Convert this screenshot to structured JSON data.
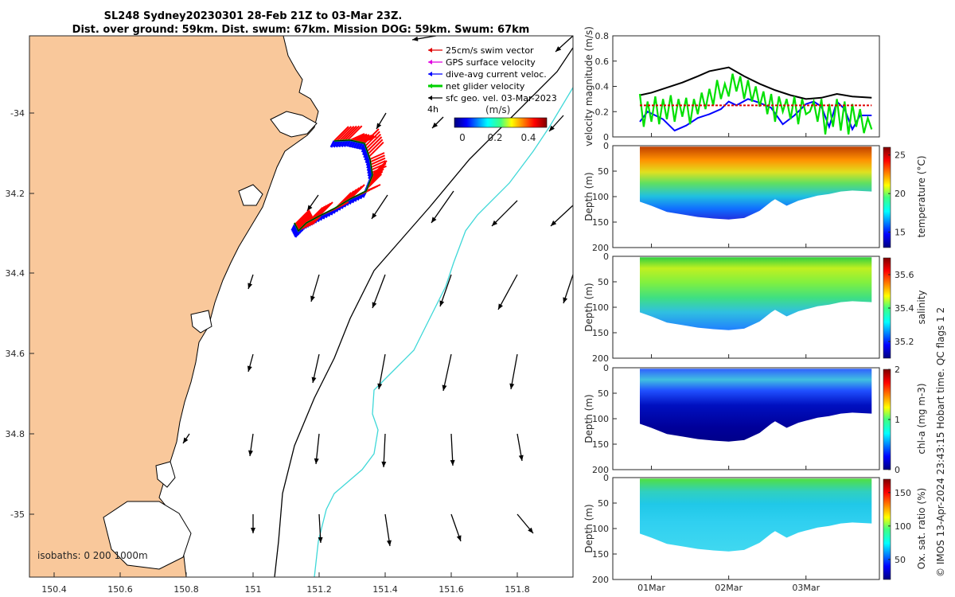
{
  "title": {
    "line1": "SL248 Sydney20230301 28-Feb 21Z to 03-Mar 23Z.",
    "line2": "Dist. over ground: 59km. Dist. swum: 67km. Mission DOG: 59km. Swum: 67km"
  },
  "map": {
    "lon_ticks": [
      "150.4",
      "150.6",
      "150.8",
      "151",
      "151.2",
      "151.4",
      "151.6",
      "151.8"
    ],
    "lat_ticks": [
      "-34",
      "34.2",
      "34.4",
      "34.6",
      "34.8",
      "-35"
    ],
    "legend": [
      {
        "label": "25cm/s swim vector",
        "color": "#e00000"
      },
      {
        "label": "GPS surface velocity",
        "color": "#e000e0"
      },
      {
        "label": "dive-avg current veloc.",
        "color": "#0000ff"
      },
      {
        "label": "net glider velocity",
        "color": "#00d000"
      },
      {
        "label": "sfc geo. vel. 03-Mar-2023",
        "color": "#000000"
      }
    ],
    "time_step": "4h",
    "cbar_unit": "(m/s)",
    "cbar_ticks": [
      "0",
      "0.2",
      "0.4"
    ],
    "isobaths_label": "isobaths: 0   200  1000m",
    "colors": {
      "land": "#f9c89b",
      "isobath_200": "#000000",
      "isobath_1000": "#3fd8d8"
    }
  },
  "chart_data": [
    {
      "type": "line",
      "ylabel": "velocity magnitude (m/s)",
      "ylim": [
        0,
        0.8
      ],
      "yticks": [
        "0",
        "0.2",
        "0.4",
        "0.6",
        "0.8"
      ],
      "series": [
        {
          "color": "#000000",
          "t": [
            0.85,
            1.0,
            1.2,
            1.4,
            1.6,
            1.75,
            2.0,
            2.2,
            2.4,
            2.6,
            2.8,
            3.0,
            3.2,
            3.4,
            3.6,
            3.85
          ],
          "v": [
            0.33,
            0.35,
            0.39,
            0.43,
            0.48,
            0.52,
            0.55,
            0.48,
            0.42,
            0.37,
            0.33,
            0.3,
            0.31,
            0.34,
            0.32,
            0.31
          ]
        },
        {
          "color": "#0000ff",
          "t": [
            0.85,
            0.95,
            1.05,
            1.15,
            1.3,
            1.45,
            1.6,
            1.75,
            1.9,
            2.0,
            2.1,
            2.25,
            2.4,
            2.55,
            2.7,
            2.85,
            3.0,
            3.1,
            3.2,
            3.3,
            3.4,
            3.5,
            3.6,
            3.7,
            3.85
          ],
          "v": [
            0.12,
            0.2,
            0.17,
            0.14,
            0.05,
            0.09,
            0.15,
            0.18,
            0.22,
            0.28,
            0.25,
            0.3,
            0.27,
            0.23,
            0.1,
            0.17,
            0.26,
            0.28,
            0.24,
            0.08,
            0.28,
            0.22,
            0.06,
            0.17,
            0.17
          ]
        },
        {
          "color": "#00e000",
          "t": [
            0.85,
            0.9,
            0.95,
            1.0,
            1.05,
            1.1,
            1.15,
            1.2,
            1.25,
            1.3,
            1.35,
            1.4,
            1.45,
            1.5,
            1.55,
            1.6,
            1.65,
            1.7,
            1.75,
            1.8,
            1.85,
            1.9,
            1.95,
            2.0,
            2.05,
            2.1,
            2.15,
            2.2,
            2.25,
            2.3,
            2.35,
            2.4,
            2.45,
            2.5,
            2.55,
            2.6,
            2.65,
            2.7,
            2.75,
            2.8,
            2.85,
            2.9,
            2.95,
            3.0,
            3.05,
            3.1,
            3.15,
            3.2,
            3.25,
            3.3,
            3.35,
            3.4,
            3.45,
            3.5,
            3.55,
            3.6,
            3.65,
            3.7,
            3.75,
            3.8,
            3.85
          ],
          "v": [
            0.34,
            0.08,
            0.28,
            0.12,
            0.32,
            0.1,
            0.3,
            0.14,
            0.33,
            0.12,
            0.3,
            0.16,
            0.31,
            0.1,
            0.3,
            0.18,
            0.35,
            0.22,
            0.38,
            0.25,
            0.45,
            0.3,
            0.42,
            0.32,
            0.5,
            0.36,
            0.48,
            0.3,
            0.45,
            0.28,
            0.4,
            0.24,
            0.36,
            0.18,
            0.34,
            0.12,
            0.32,
            0.2,
            0.3,
            0.14,
            0.32,
            0.1,
            0.3,
            0.18,
            0.2,
            0.28,
            0.12,
            0.3,
            0.02,
            0.26,
            0.08,
            0.3,
            0.05,
            0.28,
            0.02,
            0.26,
            0.08,
            0.22,
            0.03,
            0.15,
            0.06
          ]
        },
        {
          "color": "#e00000",
          "t": [
            0.85,
            3.85
          ],
          "v": [
            0.25,
            0.25
          ],
          "dashed": true
        }
      ]
    },
    {
      "type": "heatmap",
      "ylabel": "Depth (m)",
      "clabel": "temperature (°C)",
      "cticks": [
        "15",
        "20",
        "25"
      ],
      "clim": [
        13,
        26
      ],
      "yticks": [
        "0",
        "50",
        "100",
        "150",
        "200"
      ]
    },
    {
      "type": "heatmap",
      "ylabel": "Depth (m)",
      "clabel": "salinity",
      "cticks": [
        "35.2",
        "35.4",
        "35.6"
      ],
      "clim": [
        35.1,
        35.7
      ],
      "yticks": [
        "0",
        "50",
        "100",
        "150",
        "200"
      ]
    },
    {
      "type": "heatmap",
      "ylabel": "Depth (m)",
      "clabel": "chl-a (mg m-3)",
      "cticks": [
        "0",
        "1",
        "2"
      ],
      "clim": [
        0,
        2
      ],
      "yticks": [
        "0",
        "50",
        "100",
        "150",
        "200"
      ]
    },
    {
      "type": "heatmap",
      "ylabel": "Depth (m)",
      "clabel": "Ox. sat. ratio (%)",
      "cticks": [
        "50",
        "100",
        "150"
      ],
      "clim": [
        20,
        170
      ],
      "yticks": [
        "0",
        "50",
        "100",
        "150",
        "200"
      ]
    }
  ],
  "time_axis": {
    "ticks": [
      "01Mar",
      "02Mar",
      "03Mar"
    ]
  },
  "side_text": "© IMOS 13-Apr-2024 23:43:15 Hobart time. QC flags 1  2",
  "salinity_extra": "1  2"
}
